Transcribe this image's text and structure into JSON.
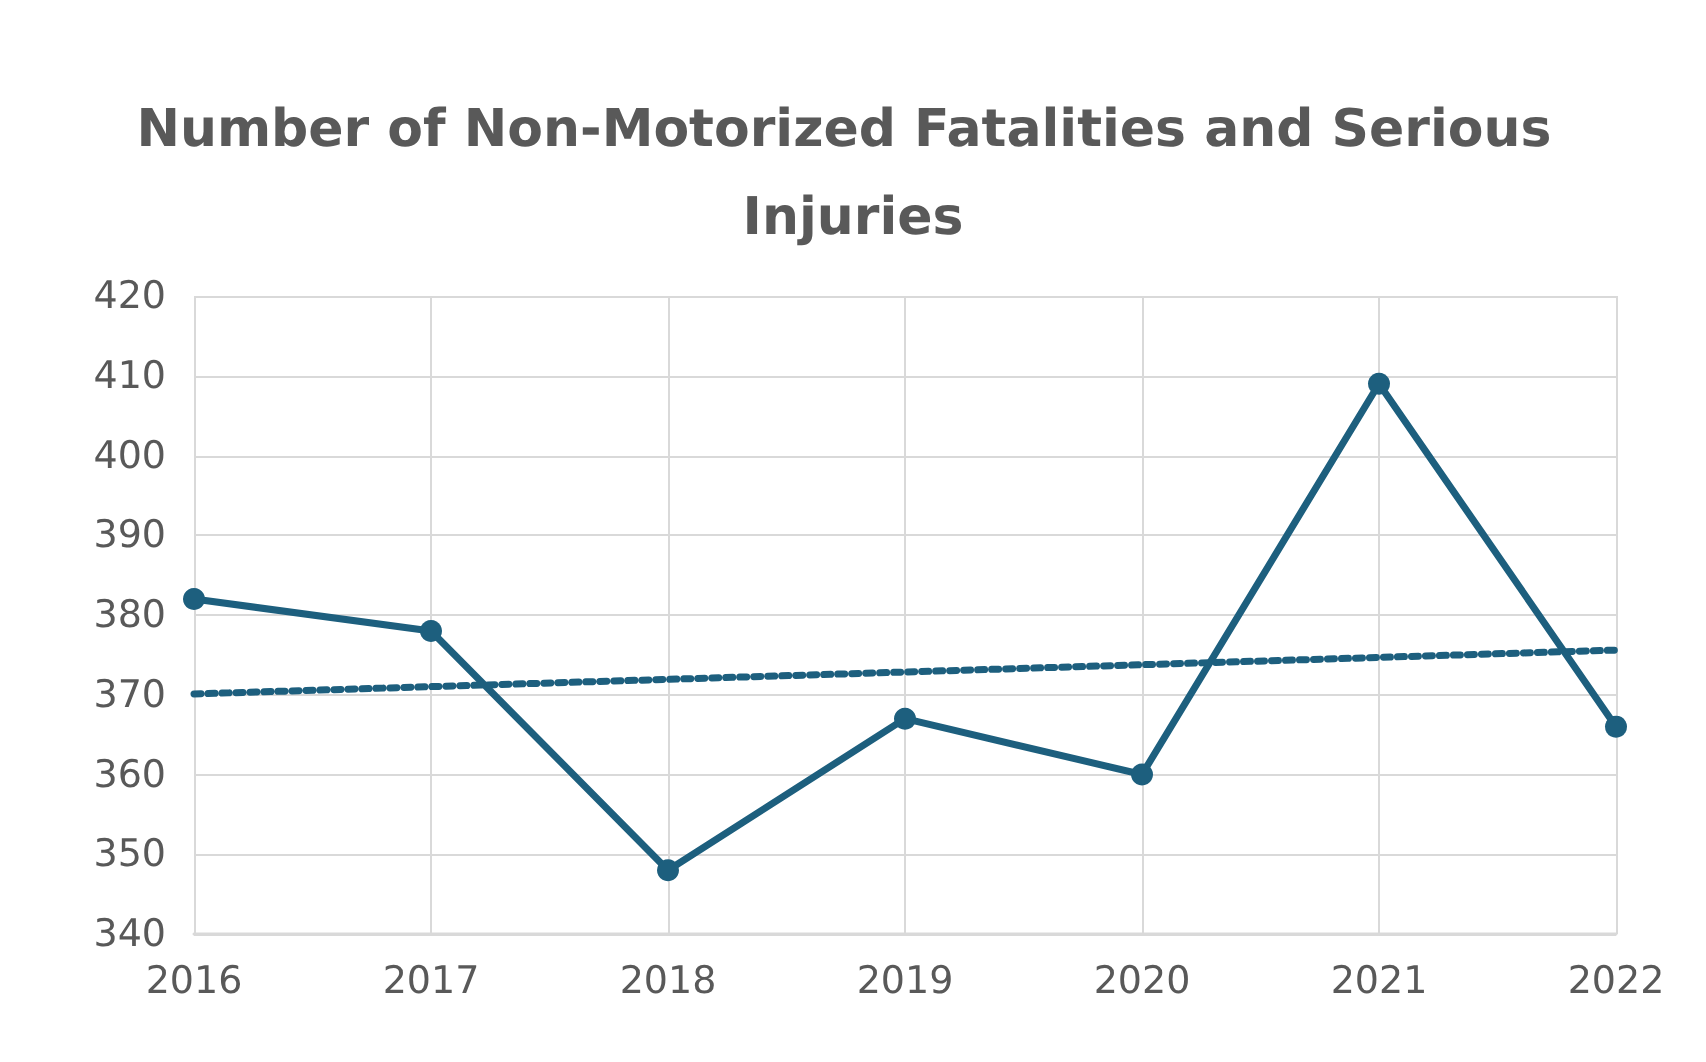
{
  "chart_data": {
    "type": "line",
    "title": "Number of Non-Motorized Fatalities and Serious Injuries",
    "x": [
      2016,
      2017,
      2018,
      2019,
      2020,
      2021,
      2022
    ],
    "series": [
      {
        "color": "#1d5f7e",
        "values": [
          382,
          378,
          348,
          367,
          360,
          409,
          366
        ],
        "marker": "circle",
        "line_style": "solid"
      },
      {
        "color": "#1d5f7e",
        "x": [
          2016,
          2022
        ],
        "values": [
          370.1,
          375.6
        ],
        "marker": "none",
        "line_style": "dotted"
      }
    ],
    "xlim": [
      2016,
      2022
    ],
    "xticks": [
      2016,
      2017,
      2018,
      2019,
      2020,
      2021,
      2022
    ],
    "ylim": [
      340,
      420
    ],
    "yticks": [
      340,
      350,
      360,
      370,
      380,
      390,
      400,
      410,
      420
    ],
    "grid": true
  }
}
